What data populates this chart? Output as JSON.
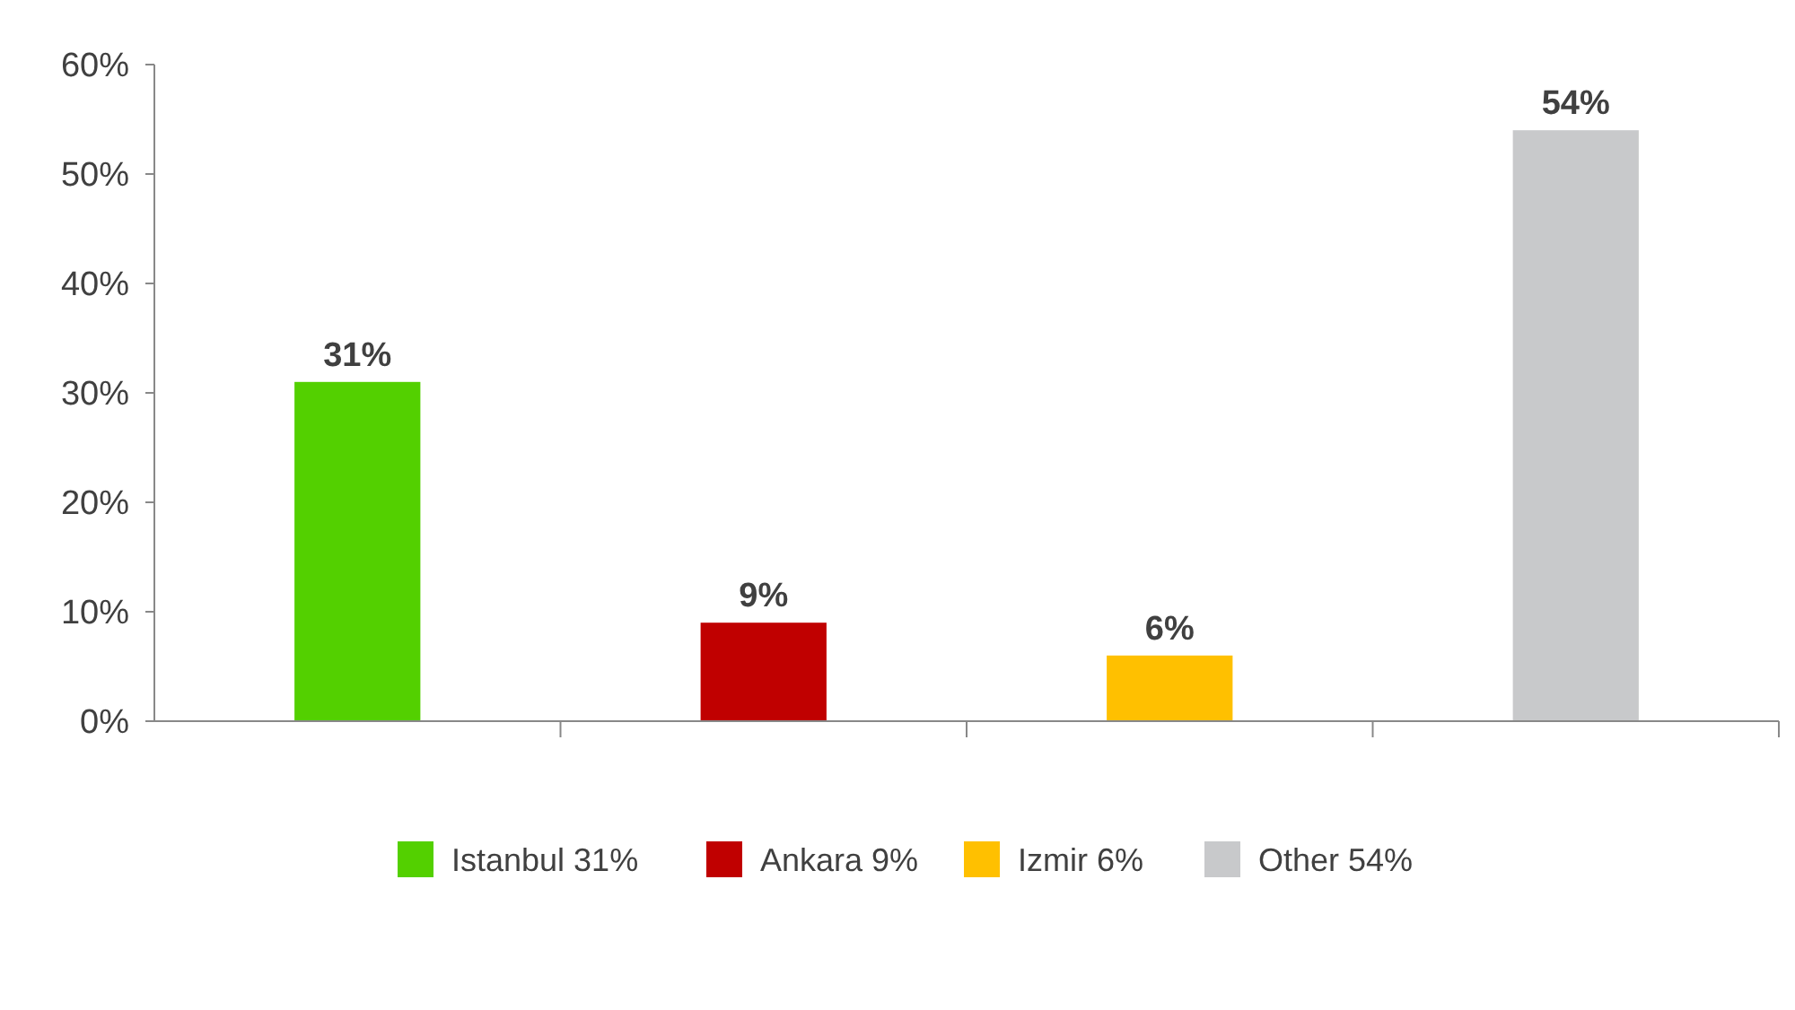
{
  "chart_data": {
    "type": "bar",
    "stacked": true,
    "categories": [
      null,
      null,
      null,
      null
    ],
    "series": [
      {
        "name": "Istanbul 31%",
        "color": "#53d000",
        "values": [
          31,
          null,
          null,
          null
        ],
        "value_labels": [
          "31%",
          null,
          null,
          null
        ]
      },
      {
        "name": "Ankara 9%",
        "color": "#c00000",
        "values": [
          null,
          9,
          null,
          null
        ],
        "value_labels": [
          null,
          "9%",
          null,
          null
        ]
      },
      {
        "name": "Izmir 6%",
        "color": "#ffc000",
        "values": [
          null,
          null,
          6,
          null
        ],
        "value_labels": [
          null,
          null,
          "6%",
          null
        ]
      },
      {
        "name": "Other 54%",
        "color": "#c8c9cb",
        "values": [
          null,
          null,
          null,
          54
        ],
        "value_labels": [
          null,
          null,
          null,
          "54%"
        ]
      }
    ],
    "ylim": [
      0,
      60
    ],
    "yticks": [
      {
        "value": 0,
        "label": "0%"
      },
      {
        "value": 10,
        "label": "10%"
      },
      {
        "value": 20,
        "label": "20%"
      },
      {
        "value": 30,
        "label": "30%"
      },
      {
        "value": 40,
        "label": "40%"
      },
      {
        "value": 50,
        "label": "50%"
      },
      {
        "value": 60,
        "label": "60%"
      }
    ],
    "legend": "bottom",
    "grid": false
  }
}
